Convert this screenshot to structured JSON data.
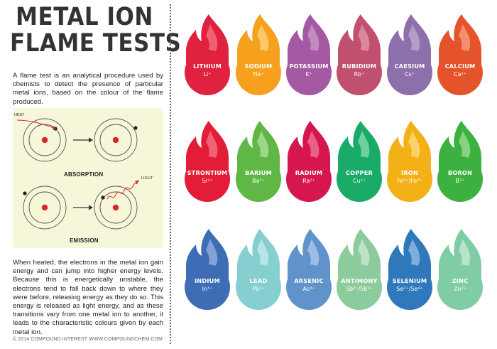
{
  "title": {
    "line1": "METAL ION",
    "line2": "FLAME TESTS"
  },
  "intro": "A flame test is an analytical procedure used by chemists to detect the presence of particular metal ions, based on the colour of the flame produced.",
  "diagram": {
    "heat_label": "HEAT",
    "light_label": "LIGHT",
    "absorption_label": "ABSORPTION",
    "emission_label": "EMISSION"
  },
  "body": "When heated, the electrons in the metal ion gain energy and can jump into higher energy levels. Because this is energetically unstable, the electrons tend to fall back down to where they were before, releasing energy as they do so. This energy is released as light energy, and as these transitions vary from one metal ion to another, it leads to the characteristic colours given by each metal ion.",
  "footer": "© 2014 COMPOUND INTEREST WWW.COMPOUNDCHEM.COM",
  "ions": [
    {
      "name": "LITHIUM",
      "symbol": "Li⁺",
      "color": "#e0213f",
      "highlight": "#f26b7a"
    },
    {
      "name": "SODIUM",
      "symbol": "Na⁺",
      "color": "#f5a11e",
      "highlight": "#fbcf72"
    },
    {
      "name": "POTASSIUM",
      "symbol": "K⁺",
      "color": "#a459a3",
      "highlight": "#c993c7"
    },
    {
      "name": "RUBIDIUM",
      "symbol": "Rb⁺",
      "color": "#c1506e",
      "highlight": "#e091a5"
    },
    {
      "name": "CAESIUM",
      "symbol": "Cs⁺",
      "color": "#8d6fab",
      "highlight": "#b9a6cc"
    },
    {
      "name": "CALCIUM",
      "symbol": "Ca²⁺",
      "color": "#e5532c",
      "highlight": "#f59a79"
    },
    {
      "name": "STRONTIUM",
      "symbol": "Sr²⁺",
      "color": "#e31d38",
      "highlight": "#f4707f"
    },
    {
      "name": "BARIUM",
      "symbol": "Ba²⁺",
      "color": "#5fb846",
      "highlight": "#a7db93"
    },
    {
      "name": "RADIUM",
      "symbol": "Ra²⁺",
      "color": "#d6174f",
      "highlight": "#ef6d8e"
    },
    {
      "name": "COPPER",
      "symbol": "Cu²⁺",
      "color": "#1aab68",
      "highlight": "#7fd7aa"
    },
    {
      "name": "IRON",
      "symbol": "Fe²⁺/Fe³⁺",
      "color": "#f3b117",
      "highlight": "#f9d877"
    },
    {
      "name": "BORON",
      "symbol": "B³⁺",
      "color": "#3db13f",
      "highlight": "#93d98f"
    },
    {
      "name": "INDIUM",
      "symbol": "In³⁺",
      "color": "#3d6db5",
      "highlight": "#8eabdb"
    },
    {
      "name": "LEAD",
      "symbol": "Pb²⁺",
      "color": "#86cfd0",
      "highlight": "#c0e9e9"
    },
    {
      "name": "ARSENIC",
      "symbol": "As³⁺",
      "color": "#5f93c9",
      "highlight": "#a8c6e6"
    },
    {
      "name": "ANTIMONY",
      "symbol": "Sb³⁺/Sb⁵⁺",
      "color": "#8ccb9b",
      "highlight": "#c4e7cc"
    },
    {
      "name": "SELENIUM",
      "symbol": "Se²⁺/Se⁴⁺",
      "color": "#2f78bb",
      "highlight": "#8db7e1"
    },
    {
      "name": "ZINC",
      "symbol": "Zn²⁺",
      "color": "#7fcca5",
      "highlight": "#c2e8d4"
    }
  ]
}
